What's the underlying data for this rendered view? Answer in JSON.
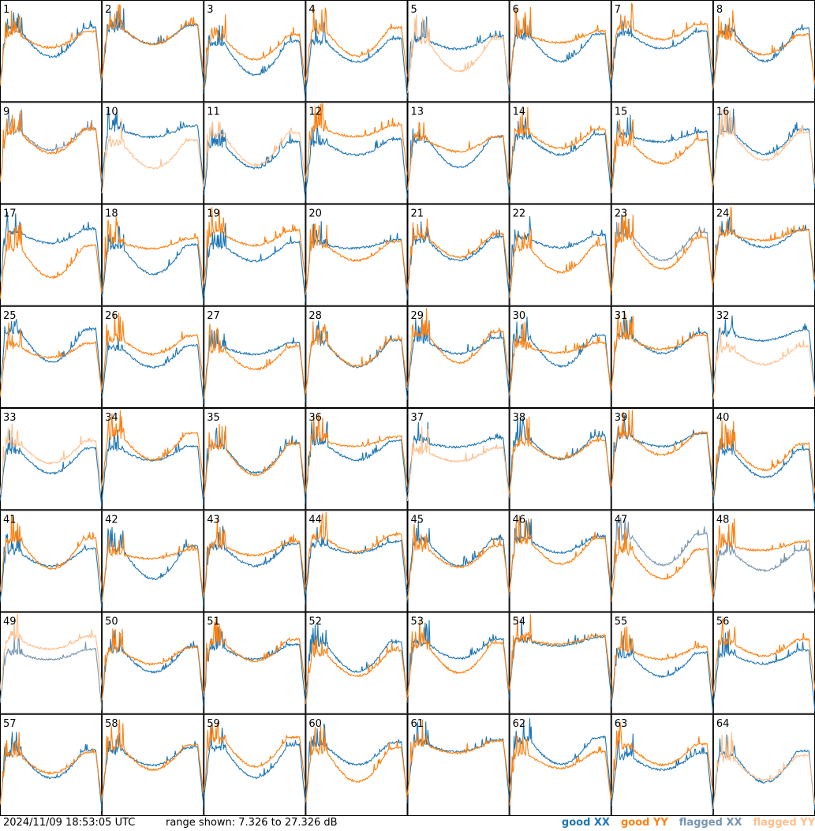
{
  "footer": {
    "timestamp": "2024/11/09 18:53:05 UTC",
    "range_text": "range shown: 7.326 to 27.326 dB"
  },
  "legend": [
    {
      "label": "good XX",
      "color": "#1f77b4"
    },
    {
      "label": "good YY",
      "color": "#ff7f0e"
    },
    {
      "label": "flagged XX",
      "color": "#7896b0"
    },
    {
      "label": "flagged YY",
      "color": "#ffbf8c"
    }
  ],
  "colors": {
    "good_xx": "#1f77b4",
    "good_yy": "#ff7f0e",
    "flagged_xx": "#7896b0",
    "flagged_yy": "#ffbf8c"
  },
  "chart_data": {
    "type": "line",
    "range_db": [
      7.326,
      27.326
    ],
    "layout": "8x8 grid of per-antenna bandpass spectra",
    "panels": [
      {
        "id": "1",
        "xx": "good",
        "yy": "good"
      },
      {
        "id": "2",
        "xx": "good",
        "yy": "good"
      },
      {
        "id": "3",
        "xx": "good",
        "yy": "good"
      },
      {
        "id": "4",
        "xx": "good",
        "yy": "good"
      },
      {
        "id": "5",
        "xx": "good",
        "yy": "flagged"
      },
      {
        "id": "6",
        "xx": "good",
        "yy": "good"
      },
      {
        "id": "7",
        "xx": "good",
        "yy": "good"
      },
      {
        "id": "8",
        "xx": "good",
        "yy": "good"
      },
      {
        "id": "9",
        "xx": "flagged",
        "yy": "good"
      },
      {
        "id": "10",
        "xx": "good",
        "yy": "flagged"
      },
      {
        "id": "11",
        "xx": "good",
        "yy": "flagged"
      },
      {
        "id": "12",
        "xx": "good",
        "yy": "good"
      },
      {
        "id": "13",
        "xx": "good",
        "yy": "good"
      },
      {
        "id": "14",
        "xx": "good",
        "yy": "good"
      },
      {
        "id": "15",
        "xx": "good",
        "yy": "good"
      },
      {
        "id": "16",
        "xx": "good",
        "yy": "flagged"
      },
      {
        "id": "17",
        "xx": "good",
        "yy": "good"
      },
      {
        "id": "18",
        "xx": "good",
        "yy": "good"
      },
      {
        "id": "19",
        "xx": "good",
        "yy": "good"
      },
      {
        "id": "20",
        "xx": "good",
        "yy": "good"
      },
      {
        "id": "21",
        "xx": "good",
        "yy": "good"
      },
      {
        "id": "22",
        "xx": "good",
        "yy": "good"
      },
      {
        "id": "23",
        "xx": "flagged",
        "yy": "good"
      },
      {
        "id": "24",
        "xx": "good",
        "yy": "good"
      },
      {
        "id": "25",
        "xx": "good",
        "yy": "good"
      },
      {
        "id": "26",
        "xx": "good",
        "yy": "good"
      },
      {
        "id": "27",
        "xx": "good",
        "yy": "good"
      },
      {
        "id": "28",
        "xx": "good",
        "yy": "good"
      },
      {
        "id": "29",
        "xx": "good",
        "yy": "good"
      },
      {
        "id": "30",
        "xx": "good",
        "yy": "good"
      },
      {
        "id": "31",
        "xx": "good",
        "yy": "good"
      },
      {
        "id": "32",
        "xx": "good",
        "yy": "flagged"
      },
      {
        "id": "33",
        "xx": "good",
        "yy": "flagged"
      },
      {
        "id": "34",
        "xx": "good",
        "yy": "good"
      },
      {
        "id": "35",
        "xx": "good",
        "yy": "good"
      },
      {
        "id": "36",
        "xx": "good",
        "yy": "good"
      },
      {
        "id": "37",
        "xx": "good",
        "yy": "flagged"
      },
      {
        "id": "38",
        "xx": "good",
        "yy": "good"
      },
      {
        "id": "39",
        "xx": "good",
        "yy": "good"
      },
      {
        "id": "40",
        "xx": "good",
        "yy": "good"
      },
      {
        "id": "41",
        "xx": "good",
        "yy": "good"
      },
      {
        "id": "42",
        "xx": "good",
        "yy": "good"
      },
      {
        "id": "43",
        "xx": "good",
        "yy": "good"
      },
      {
        "id": "44",
        "xx": "good",
        "yy": "good"
      },
      {
        "id": "45",
        "xx": "good",
        "yy": "good"
      },
      {
        "id": "46",
        "xx": "good",
        "yy": "good"
      },
      {
        "id": "47",
        "xx": "flagged",
        "yy": "good"
      },
      {
        "id": "48",
        "xx": "flagged",
        "yy": "good"
      },
      {
        "id": "49",
        "xx": "flagged",
        "yy": "flagged"
      },
      {
        "id": "50",
        "xx": "good",
        "yy": "good"
      },
      {
        "id": "51",
        "xx": "good",
        "yy": "good"
      },
      {
        "id": "52",
        "xx": "good",
        "yy": "good"
      },
      {
        "id": "53",
        "xx": "good",
        "yy": "good"
      },
      {
        "id": "54",
        "xx": "good",
        "yy": "good"
      },
      {
        "id": "55",
        "xx": "good",
        "yy": "good"
      },
      {
        "id": "56",
        "xx": "good",
        "yy": "good"
      },
      {
        "id": "57",
        "xx": "good",
        "yy": "good"
      },
      {
        "id": "58",
        "xx": "good",
        "yy": "good"
      },
      {
        "id": "59",
        "xx": "good",
        "yy": "good"
      },
      {
        "id": "60",
        "xx": "good",
        "yy": "good"
      },
      {
        "id": "61",
        "xx": "good",
        "yy": "good"
      },
      {
        "id": "62",
        "xx": "good",
        "yy": "good"
      },
      {
        "id": "63",
        "xx": "good",
        "yy": "good"
      },
      {
        "id": "64",
        "xx": "good",
        "yy": "flagged"
      }
    ]
  }
}
